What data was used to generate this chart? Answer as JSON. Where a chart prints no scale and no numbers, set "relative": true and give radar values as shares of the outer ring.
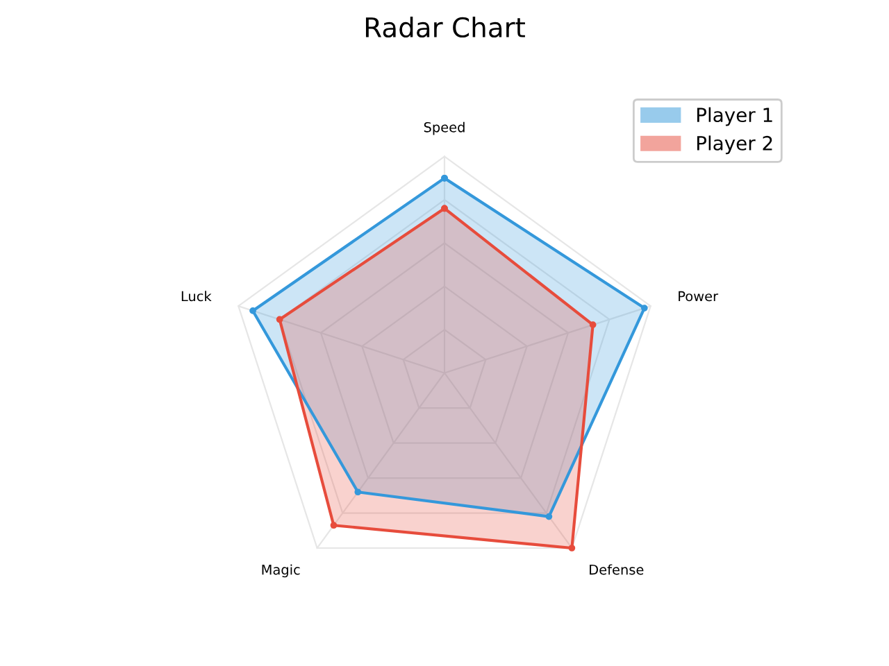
{
  "chart_data": {
    "type": "radar",
    "title": "Radar Chart",
    "relative": true,
    "categories": [
      "Speed",
      "Power",
      "Defense",
      "Magic",
      "Luck"
    ],
    "series": [
      {
        "name": "Player 1",
        "color": "#3498db",
        "values": [
          0.9,
          0.97,
          0.82,
          0.68,
          0.93
        ]
      },
      {
        "name": "Player 2",
        "color": "#e74c3c",
        "values": [
          0.76,
          0.72,
          1.0,
          0.87,
          0.8
        ]
      }
    ],
    "grid": true,
    "legend": "top right",
    "marker": "circle"
  }
}
